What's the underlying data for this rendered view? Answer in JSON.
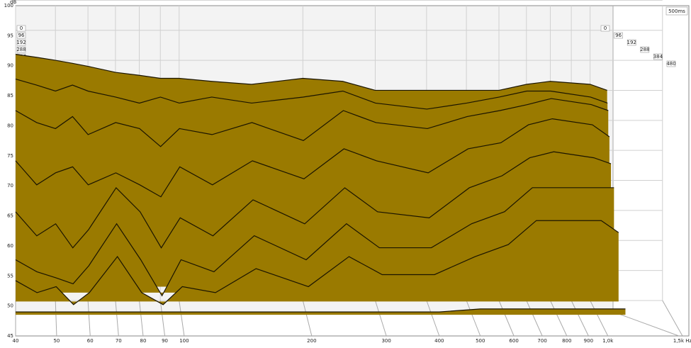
{
  "chart_data": {
    "type": "waterfall",
    "y_label": "dB",
    "time_range_label": "500ms",
    "x": [
      40,
      45,
      50,
      55,
      60,
      70,
      80,
      90,
      100,
      120,
      150,
      200,
      250,
      300,
      400,
      500,
      600,
      700,
      800,
      1000,
      1100
    ],
    "xlim": [
      40,
      1500
    ],
    "xticks": [
      40,
      50,
      60,
      70,
      80,
      90,
      100,
      200,
      300,
      400,
      500,
      600,
      700,
      800,
      900,
      {
        "value": 1000,
        "label": "1,0k"
      },
      {
        "value": 1500,
        "label": "1,5k Hz"
      }
    ],
    "ylim": [
      45,
      100
    ],
    "yticks": [
      45,
      50,
      55,
      60,
      65,
      70,
      75,
      80,
      85,
      90,
      95,
      100
    ],
    "zlim": [
      0,
      480
    ],
    "zticks": [
      0,
      96,
      192,
      288,
      384,
      480
    ],
    "log_x": true,
    "grid": true,
    "color": "#9a7a00",
    "line_color": "#1a1400",
    "slices": [
      {
        "time": 0,
        "values": [
          86,
          85.5,
          85,
          84.5,
          84,
          83,
          82.5,
          82,
          82,
          81.5,
          81,
          82,
          81.5,
          80,
          80,
          80,
          80,
          81,
          81.5,
          81,
          80
        ]
      },
      {
        "time": 10,
        "values": [
          82,
          81,
          80,
          81,
          80,
          79,
          78,
          79,
          78,
          79,
          78,
          79,
          80,
          78,
          77,
          78,
          79,
          80,
          80,
          79,
          78
        ]
      },
      {
        "time": 30,
        "values": [
          77,
          75,
          74,
          76,
          73,
          75,
          74,
          71,
          74,
          73,
          75,
          72,
          77,
          75,
          74,
          76,
          77,
          78,
          79,
          78,
          77
        ]
      },
      {
        "time": 60,
        "values": [
          69,
          65,
          67,
          68,
          65,
          67,
          65,
          63,
          68,
          65,
          69,
          66,
          71,
          69,
          67,
          71,
          72,
          75,
          76,
          75,
          73
        ]
      },
      {
        "time": 100,
        "values": [
          61,
          57,
          59,
          55,
          58,
          65,
          61,
          55,
          60,
          57,
          63,
          59,
          65,
          61,
          60,
          65,
          67,
          70,
          71,
          70,
          69
        ]
      },
      {
        "time": 180,
        "values": [
          54,
          52,
          51,
          50,
          53,
          60,
          54,
          48,
          54,
          52,
          58,
          54,
          60,
          56,
          56,
          60,
          62,
          66,
          66,
          66,
          66
        ]
      },
      {
        "time": 300,
        "values": [
          52,
          50,
          51,
          48,
          50,
          56,
          50,
          48,
          51,
          50,
          54,
          51,
          56,
          53,
          53,
          56,
          58,
          62,
          62,
          62,
          60
        ]
      },
      {
        "time": 480,
        "values": [
          49,
          49,
          49,
          49,
          49,
          49,
          49,
          49,
          49,
          49,
          49,
          49,
          49,
          49,
          49,
          49.5,
          49.5,
          49.5,
          49.5,
          49.5,
          49.5
        ]
      }
    ]
  }
}
